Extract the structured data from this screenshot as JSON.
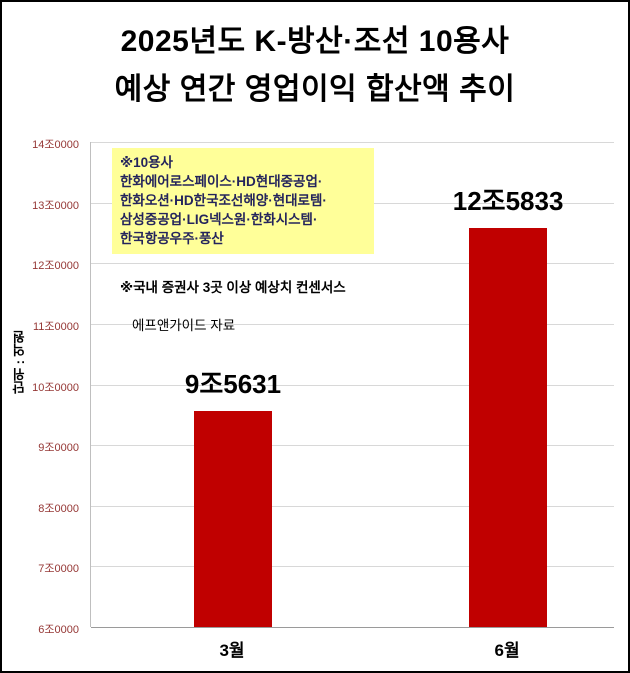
{
  "title": {
    "line1": "2025년도 K-방산·조선 10용사",
    "line2": "예상 연간 영업이익 합산액 추이"
  },
  "y_axis_unit": "단위 : 억원",
  "notes": {
    "highlight": {
      "header": "※10용사",
      "lines": [
        "한화에어로스페이스·HD현대중공업·",
        "한화오션·HD한국조선해양·현대로템·",
        "삼성중공업·LIG넥스원·한화시스템·",
        "한국항공우주·풍산"
      ]
    },
    "consensus": "※국내 증권사 3곳 이상 예상치 컨센서스",
    "source": "에프앤가이드 자료"
  },
  "colors": {
    "bar": "#c00000",
    "tick_label": "#953735",
    "highlight_bg": "#ffff99",
    "note_text": "#24245c",
    "grid": "#d8d8d8"
  },
  "chart_data": {
    "type": "bar",
    "title": "2025년도 K-방산·조선 10용사 예상 연간 영업이익 합산액 추이",
    "categories": [
      "3월",
      "6월"
    ],
    "values": [
      95631,
      125833
    ],
    "value_labels": [
      "9조5631",
      "12조5833"
    ],
    "xlabel": "",
    "ylabel": "단위 : 억원",
    "ylim": [
      60000,
      140000
    ],
    "grid": true,
    "legend": false,
    "yticks": [
      {
        "value": 140000,
        "label": "14조0000"
      },
      {
        "value": 130000,
        "label": "13조0000"
      },
      {
        "value": 120000,
        "label": "12조0000"
      },
      {
        "value": 110000,
        "label": "11조0000"
      },
      {
        "value": 100000,
        "label": "10조0000"
      },
      {
        "value": 90000,
        "label": "9조0000"
      },
      {
        "value": 80000,
        "label": "8조0000"
      },
      {
        "value": 70000,
        "label": "7조0000"
      },
      {
        "value": 60000,
        "label": "6조0000"
      }
    ]
  }
}
